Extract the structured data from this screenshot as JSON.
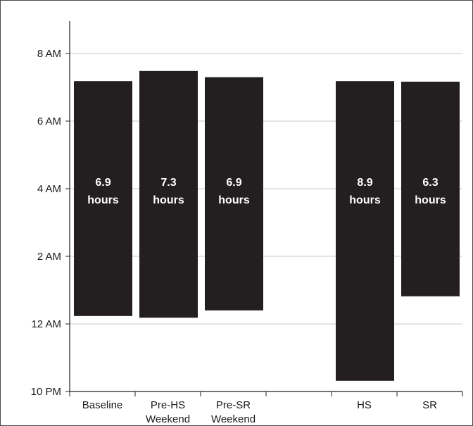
{
  "chart_data": {
    "type": "bar",
    "subtype": "floating-range",
    "title": "",
    "xlabel": "",
    "ylabel": "",
    "y_axis_ticks": [
      "10 PM",
      "12 AM",
      "2 AM",
      "4 AM",
      "6 AM",
      "8 AM"
    ],
    "ylim_hours_after_10pm": [
      0,
      10.5
    ],
    "grid": true,
    "categories": [
      {
        "label": [
          "Baseline"
        ],
        "slot": 0
      },
      {
        "label": [
          "Pre-HS",
          "Weekend"
        ],
        "slot": 1
      },
      {
        "label": [
          "Pre-SR",
          "Weekend"
        ],
        "slot": 2
      },
      {
        "label": [],
        "slot": 3
      },
      {
        "label": [
          "HS"
        ],
        "slot": 4
      },
      {
        "label": [
          "SR"
        ],
        "slot": 5
      }
    ],
    "bars": [
      {
        "category": "Baseline",
        "slot": 0,
        "start": "12:14 AM",
        "end": "7:11 AM",
        "duration_label": [
          "6.9",
          "hours"
        ]
      },
      {
        "category": "Pre-HS Weekend",
        "slot": 1,
        "start": "12:11 AM",
        "end": "7:29 AM",
        "duration_label": [
          "7.3",
          "hours"
        ]
      },
      {
        "category": "Pre-SR Weekend",
        "slot": 2,
        "start": "12:24 AM",
        "end": "7:18 AM",
        "duration_label": [
          "6.9",
          "hours"
        ]
      },
      {
        "category": "HS",
        "slot": 4,
        "start": "10:19 PM",
        "end": "7:11 AM",
        "duration_label": [
          "8.9",
          "hours"
        ]
      },
      {
        "category": "SR",
        "slot": 5,
        "start": "12:49 AM",
        "end": "7:10 AM",
        "duration_label": [
          "6.3",
          "hours"
        ]
      }
    ],
    "colors": {
      "bar": "#231f20",
      "bar_text": "#ffffff",
      "grid": "#c8c8c8",
      "axis": "#231f20"
    }
  }
}
